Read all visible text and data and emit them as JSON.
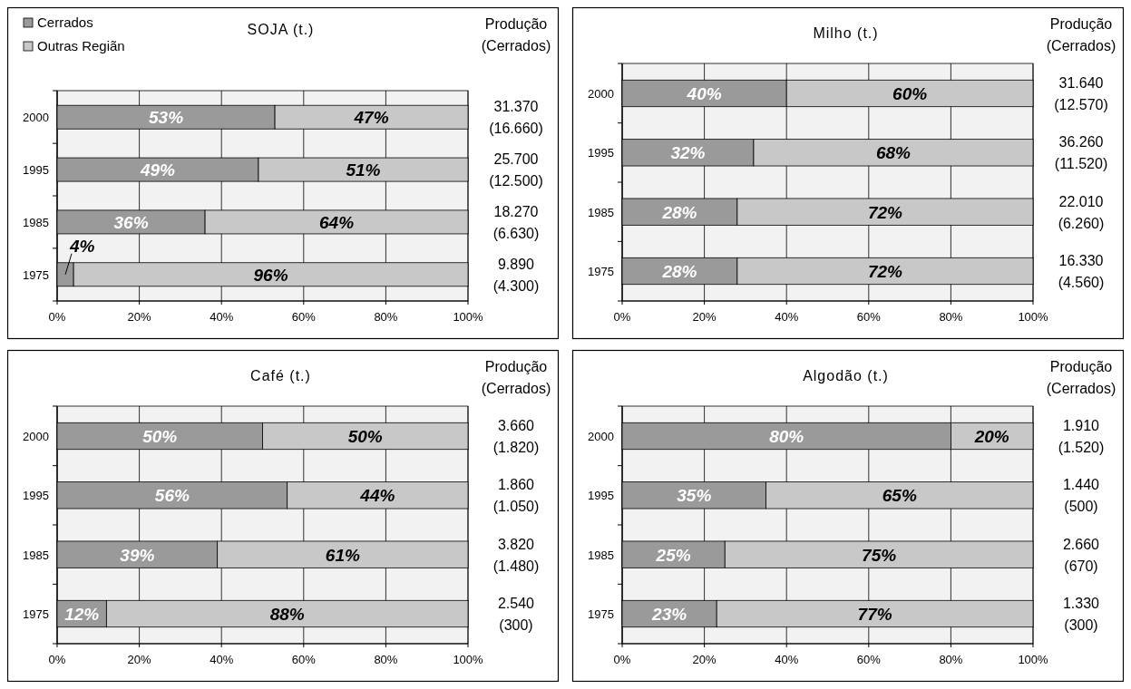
{
  "chart_data": [
    {
      "type": "bar",
      "orientation": "horizontal",
      "stacked": true,
      "title": "SOJA (t.)",
      "categories": [
        "2000",
        "1995",
        "1985",
        "1975"
      ],
      "xlim": [
        0,
        100
      ],
      "xticks": [
        {
          "value": 0,
          "label": "0%"
        },
        {
          "value": 20,
          "label": "20%"
        },
        {
          "value": 40,
          "label": "40%"
        },
        {
          "value": 60,
          "label": "60%"
        },
        {
          "value": 80,
          "label": "80%"
        },
        {
          "value": 100,
          "label": "100%"
        }
      ],
      "grid": "x",
      "legend": "top left",
      "series": [
        {
          "name": "Cerrados",
          "color": "#9a9a9a",
          "values": [
            53,
            49,
            36,
            4
          ],
          "value_labels": [
            "53%",
            "49%",
            "36%",
            "4%"
          ]
        },
        {
          "name": "Outras Regiãn",
          "color": "#c8c8c8",
          "values": [
            47,
            51,
            64,
            96
          ],
          "value_labels": [
            "47%",
            "51%",
            "64%",
            "96%"
          ]
        }
      ],
      "annotations": [
        "Produção (Cerrados)",
        "31.370 (16.660)",
        "25.700 (12.500)",
        "18.270 (6.630)",
        "9.890 (4.300)"
      ]
    },
    {
      "type": "bar",
      "orientation": "horizontal",
      "stacked": true,
      "title": "Milho (t.)",
      "categories": [
        "2000",
        "1995",
        "1985",
        "1975"
      ],
      "xlim": [
        0,
        100
      ],
      "xticks": [
        {
          "value": 0,
          "label": "0%"
        },
        {
          "value": 20,
          "label": "20%"
        },
        {
          "value": 40,
          "label": "40%"
        },
        {
          "value": 60,
          "label": "60%"
        },
        {
          "value": 80,
          "label": "80%"
        },
        {
          "value": 100,
          "label": "100%"
        }
      ],
      "grid": "x",
      "series": [
        {
          "color": "#9a9a9a",
          "values": [
            40,
            32,
            28,
            28
          ],
          "value_labels": [
            "40%",
            "32%",
            "28%",
            "28%"
          ]
        },
        {
          "color": "#c8c8c8",
          "values": [
            60,
            68,
            72,
            72
          ],
          "value_labels": [
            "60%",
            "68%",
            "72%",
            "72%"
          ]
        }
      ],
      "annotations": [
        "Produção (Cerrados)",
        "31.640 (12.570)",
        "36.260 (11.520)",
        "22.010 (6.260)",
        "16.330 (4.560)"
      ]
    },
    {
      "type": "bar",
      "orientation": "horizontal",
      "stacked": true,
      "title": "Café (t.)",
      "categories": [
        "2000",
        "1995",
        "1985",
        "1975"
      ],
      "xlim": [
        0,
        100
      ],
      "xticks": [
        {
          "value": 0,
          "label": "0%"
        },
        {
          "value": 20,
          "label": "20%"
        },
        {
          "value": 40,
          "label": "40%"
        },
        {
          "value": 60,
          "label": "60%"
        },
        {
          "value": 80,
          "label": "80%"
        },
        {
          "value": 100,
          "label": "100%"
        }
      ],
      "grid": "x",
      "series": [
        {
          "color": "#9a9a9a",
          "values": [
            50,
            56,
            39,
            12
          ],
          "value_labels": [
            "50%",
            "56%",
            "39%",
            "12%"
          ]
        },
        {
          "color": "#c8c8c8",
          "values": [
            50,
            44,
            61,
            88
          ],
          "value_labels": [
            "50%",
            "44%",
            "61%",
            "88%"
          ]
        }
      ],
      "annotations": [
        "Produção (Cerrados)",
        "3.660 (1.820)",
        "1.860 (1.050)",
        "3.820 (1.480)",
        "2.540 (300)"
      ]
    },
    {
      "type": "bar",
      "orientation": "horizontal",
      "stacked": true,
      "title": "Algodão (t.)",
      "categories": [
        "2000",
        "1995",
        "1985",
        "1975"
      ],
      "xlim": [
        0,
        100
      ],
      "xticks": [
        {
          "value": 0,
          "label": "0%"
        },
        {
          "value": 20,
          "label": "20%"
        },
        {
          "value": 40,
          "label": "40%"
        },
        {
          "value": 60,
          "label": "60%"
        },
        {
          "value": 80,
          "label": "80%"
        },
        {
          "value": 100,
          "label": "100%"
        }
      ],
      "grid": "x",
      "series": [
        {
          "color": "#9a9a9a",
          "values": [
            80,
            35,
            25,
            23
          ],
          "value_labels": [
            "80%",
            "35%",
            "25%",
            "23%"
          ]
        },
        {
          "color": "#c8c8c8",
          "values": [
            20,
            65,
            75,
            77
          ],
          "value_labels": [
            "20%",
            "65%",
            "75%",
            "77%"
          ]
        }
      ],
      "annotations": [
        "Produção (Cerrados)",
        "1.910 (1.520)",
        "1.440 (500)",
        "2.660 (670)",
        "1.330 (300)"
      ]
    }
  ]
}
